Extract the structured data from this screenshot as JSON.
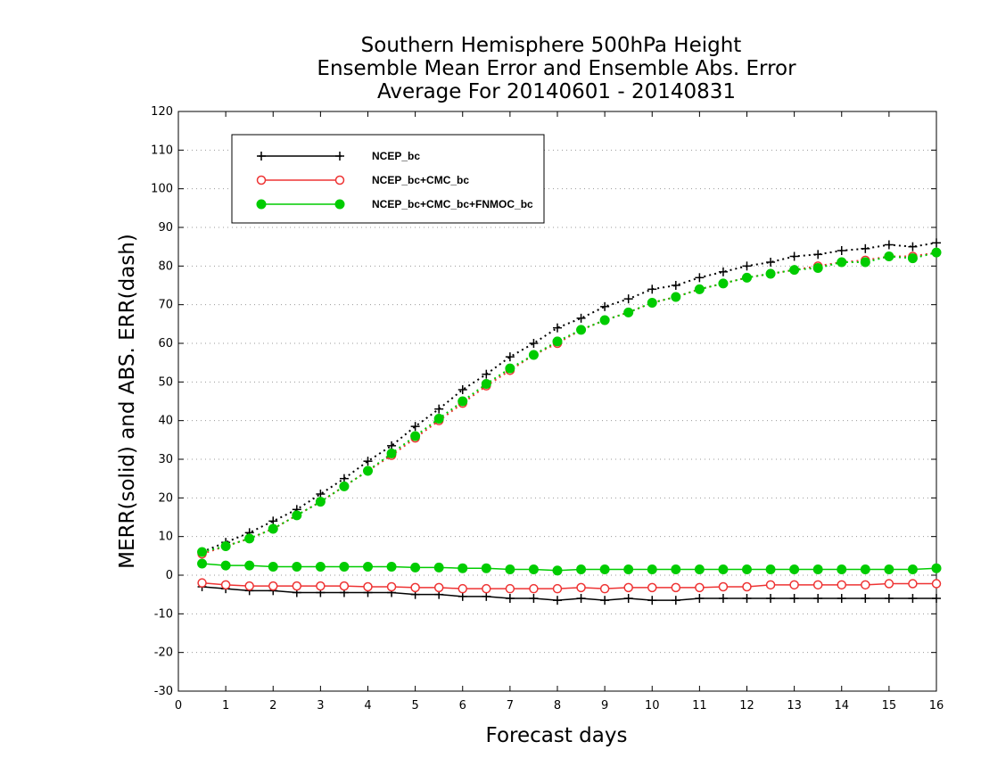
{
  "chart_data": {
    "type": "line",
    "title": [
      "Southern Hemisphere 500hPa Height",
      "Ensemble Mean Error and Ensemble Abs. Error",
      "Average For 20140601 - 20140831"
    ],
    "xlabel": "Forecast days",
    "ylabel": "MERR(solid) and ABS. ERR(dash)",
    "xlim": [
      0,
      16
    ],
    "ylim": [
      -30,
      120
    ],
    "xticks": [
      0,
      1,
      2,
      3,
      4,
      5,
      6,
      7,
      8,
      9,
      10,
      11,
      12,
      13,
      14,
      15,
      16
    ],
    "yticks": [
      -30,
      -20,
      -10,
      0,
      10,
      20,
      30,
      40,
      50,
      60,
      70,
      80,
      90,
      100,
      110,
      120
    ],
    "grid": "horizontal-dotted",
    "legend_position": "top-left",
    "x": [
      0.5,
      1,
      1.5,
      2,
      2.5,
      3,
      3.5,
      4,
      4.5,
      5,
      5.5,
      6,
      6.5,
      7,
      7.5,
      8,
      8.5,
      9,
      9.5,
      10,
      10.5,
      11,
      11.5,
      12,
      12.5,
      13,
      13.5,
      14,
      14.5,
      15,
      15.5,
      16
    ],
    "series": [
      {
        "name": "NCEP_bc",
        "color": "#000000",
        "marker": "plus",
        "abs_err": [
          6,
          8.5,
          11,
          14,
          17,
          21,
          25,
          29.5,
          33.5,
          38.5,
          43,
          48,
          52,
          56.5,
          60,
          64,
          66.5,
          69.5,
          71.5,
          74,
          75,
          77,
          78.5,
          80,
          81,
          82.5,
          83,
          84,
          84.5,
          85.5,
          85,
          86
        ],
        "mean_err": [
          -3,
          -3.5,
          -4,
          -4,
          -4.5,
          -4.5,
          -4.5,
          -4.5,
          -4.5,
          -5,
          -5,
          -5.5,
          -5.5,
          -6,
          -6,
          -6.5,
          -6,
          -6.5,
          -6,
          -6.5,
          -6.5,
          -6,
          -6,
          -6,
          -6,
          -6,
          -6,
          -6,
          -6,
          -6,
          -6,
          -6
        ]
      },
      {
        "name": "NCEP_bc+CMC_bc",
        "color": "#ee3333",
        "marker": "open-circle",
        "abs_err": [
          5.5,
          7.5,
          9.5,
          12,
          15.5,
          19,
          23,
          27,
          31,
          35.5,
          40,
          44.5,
          49,
          53,
          57,
          60,
          63.5,
          66,
          68,
          70.5,
          72,
          74,
          75.5,
          77,
          78,
          79,
          80,
          81,
          81.5,
          82.5,
          82.5,
          83.5
        ],
        "mean_err": [
          -2,
          -2.5,
          -2.8,
          -2.8,
          -2.8,
          -2.8,
          -2.8,
          -3,
          -3,
          -3.2,
          -3.2,
          -3.5,
          -3.5,
          -3.5,
          -3.5,
          -3.5,
          -3.2,
          -3.5,
          -3.2,
          -3.2,
          -3.2,
          -3.2,
          -3,
          -3,
          -2.5,
          -2.5,
          -2.5,
          -2.5,
          -2.5,
          -2.2,
          -2.2,
          -2.2
        ]
      },
      {
        "name": "NCEP_bc+CMC_bc+FNMOC_bc",
        "color": "#00cc00",
        "marker": "filled-circle",
        "abs_err": [
          6,
          7.5,
          9.5,
          12,
          15.5,
          19,
          23,
          27,
          31.5,
          36,
          40.5,
          45,
          49.5,
          53.5,
          57,
          60.5,
          63.5,
          66,
          68,
          70.5,
          72,
          74,
          75.5,
          77,
          78,
          79,
          79.5,
          81,
          81,
          82.5,
          82,
          83.5
        ],
        "mean_err": [
          3,
          2.5,
          2.5,
          2.2,
          2.2,
          2.2,
          2.2,
          2.2,
          2.2,
          2,
          2,
          1.8,
          1.8,
          1.5,
          1.5,
          1.2,
          1.5,
          1.5,
          1.5,
          1.5,
          1.5,
          1.5,
          1.5,
          1.5,
          1.5,
          1.5,
          1.5,
          1.5,
          1.5,
          1.5,
          1.5,
          1.8
        ]
      }
    ]
  }
}
